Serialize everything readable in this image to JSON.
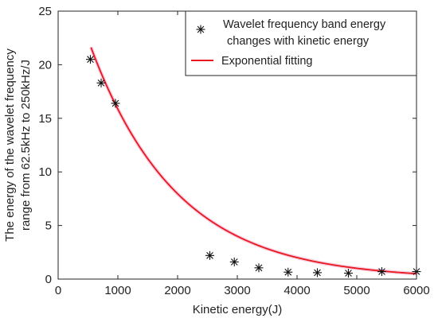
{
  "chart_data": {
    "type": "scatter",
    "xlabel": "Kinetic energy(J)",
    "ylabel_lines": [
      "The energy of the wavelet frequency",
      "range from 62.5kHz to 250kHz/J"
    ],
    "xlim": [
      0,
      6000
    ],
    "ylim": [
      0,
      25
    ],
    "x_ticks": [
      0,
      1000,
      2000,
      3000,
      4000,
      5000,
      6000
    ],
    "y_ticks": [
      0,
      5,
      10,
      15,
      20,
      25
    ],
    "grid": false,
    "legend_position": "top-right",
    "series": [
      {
        "name_lines": [
          "Wavelet frequency band energy",
          "changes with kinetic energy"
        ],
        "kind": "scatter",
        "marker": "asterisk",
        "color": "#000000",
        "points": [
          {
            "x": 540,
            "y": 20.5
          },
          {
            "x": 720,
            "y": 18.3
          },
          {
            "x": 960,
            "y": 16.4
          },
          {
            "x": 2540,
            "y": 2.2
          },
          {
            "x": 2950,
            "y": 1.6
          },
          {
            "x": 3360,
            "y": 1.05
          },
          {
            "x": 3850,
            "y": 0.65
          },
          {
            "x": 4340,
            "y": 0.6
          },
          {
            "x": 4860,
            "y": 0.55
          },
          {
            "x": 5420,
            "y": 0.7
          },
          {
            "x": 6000,
            "y": 0.7
          }
        ]
      },
      {
        "name_lines": [
          "Exponential fitting"
        ],
        "kind": "line",
        "color": "#e8181c",
        "fit": {
          "a": 31.58,
          "b": -0.000689
        },
        "x_range": [
          550,
          6000
        ]
      }
    ]
  }
}
